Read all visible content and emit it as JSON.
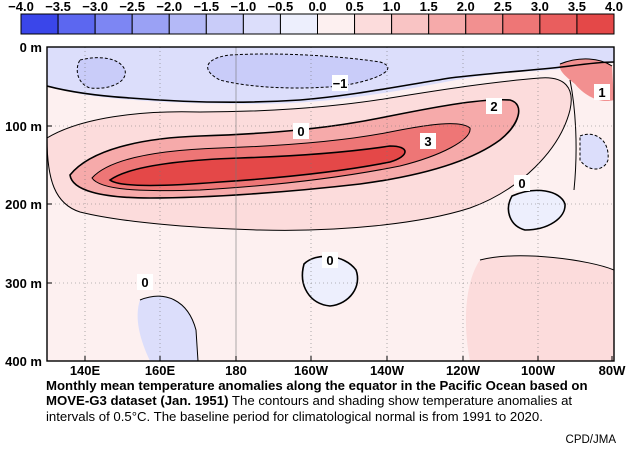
{
  "chart_data": {
    "type": "heatmap",
    "title": "Monthly mean temperature anomalies along the equator in the Pacific Ocean based on MOVE-G3 dataset (Jan. 1951)",
    "colorbar": {
      "ticks": [
        "−4.0",
        "−3.5",
        "−3.0",
        "−2.5",
        "−2.0",
        "−1.5",
        "−1.0",
        "−0.5",
        "0.0",
        "0.5",
        "1.0",
        "1.5",
        "2.0",
        "2.5",
        "3.0",
        "3.5",
        "4.0"
      ],
      "colors": [
        "#3a46ea",
        "#5c67f0",
        "#7d86f3",
        "#9aa1f5",
        "#b4b9f7",
        "#c9ccf9",
        "#dcdefb",
        "#edeffd",
        "#fdf0f0",
        "#fcdcdc",
        "#f9c4c4",
        "#f6aaaa",
        "#f29090",
        "#ee7676",
        "#e95e5e",
        "#e44848"
      ]
    },
    "x_ticks": [
      "140E",
      "160E",
      "180",
      "160W",
      "140W",
      "120W",
      "100W",
      "80W"
    ],
    "y_ticks": [
      "0 m",
      "100 m",
      "200 m",
      "300 m",
      "400 m"
    ],
    "x_range": [
      "130E",
      "80W"
    ],
    "y_range": [
      0,
      400
    ],
    "contour_interval": 0.5,
    "contour_labels": [
      "−1",
      "0",
      "2",
      "3",
      "1",
      "0",
      "0",
      "0"
    ],
    "grid": true
  },
  "caption": {
    "bold": "Monthly mean temperature anomalies along the equator in the Pacific Ocean based on MOVE-G3 dataset (Jan. 1951)",
    "text": " The contours and shading show temperature anomalies at intervals of 0.5°C.  The baseline period for climatological normal is from 1991 to 2020."
  },
  "credit": "CPD/JMA"
}
